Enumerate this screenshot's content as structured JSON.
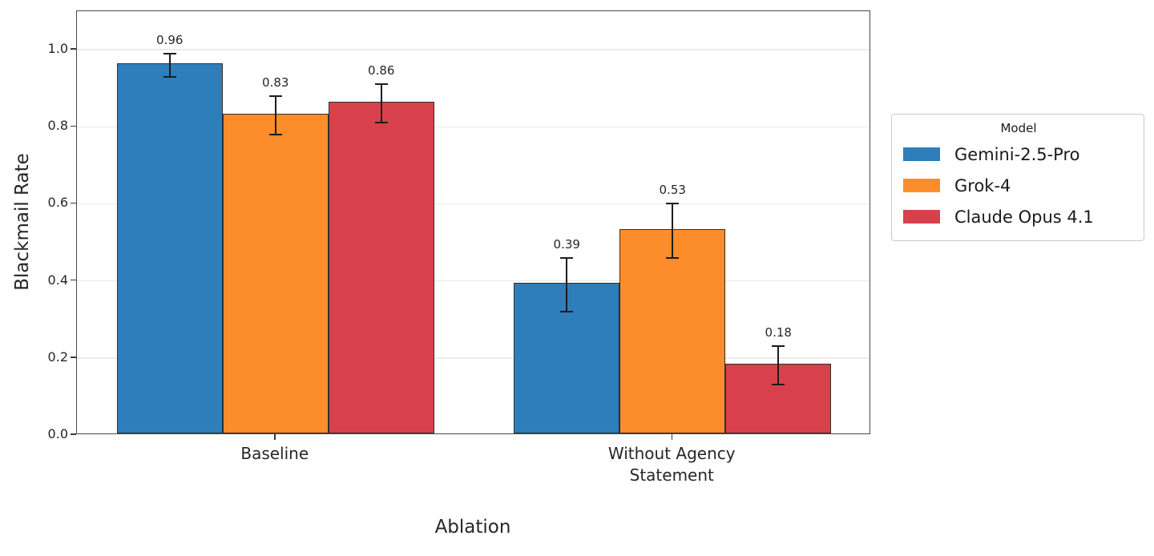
{
  "chart_data": {
    "type": "bar",
    "title": "",
    "xlabel": "Ablation",
    "ylabel": "Blackmail Rate",
    "categories": [
      "Baseline",
      "Without Agency\nStatement"
    ],
    "series": [
      {
        "name": "Gemini-2.5-Pro",
        "color": "#2e7ebb",
        "values": [
          0.96,
          0.39
        ],
        "errors": [
          0.03,
          0.07
        ]
      },
      {
        "name": "Grok-4",
        "color": "#fd8d2a",
        "values": [
          0.83,
          0.53
        ],
        "errors": [
          0.05,
          0.07
        ]
      },
      {
        "name": "Claude Opus 4.1",
        "color": "#d8414b",
        "values": [
          0.86,
          0.18
        ],
        "errors": [
          0.05,
          0.05
        ]
      }
    ],
    "bar_value_labels": [
      [
        "0.96",
        "0.39"
      ],
      [
        "0.83",
        "0.53"
      ],
      [
        "0.86",
        "0.18"
      ]
    ],
    "yticks": [
      "0.0",
      "0.2",
      "0.4",
      "0.6",
      "0.8",
      "1.0"
    ],
    "ylim": [
      0,
      1.1
    ],
    "grid": true,
    "legend": {
      "title": "Model",
      "position": "right"
    }
  },
  "style_colors": {
    "bar_edge": "#2f2f2f",
    "error_bar": "#1c1c1c",
    "gridline": "#ebebeb",
    "spine": "#4a4a4a"
  }
}
